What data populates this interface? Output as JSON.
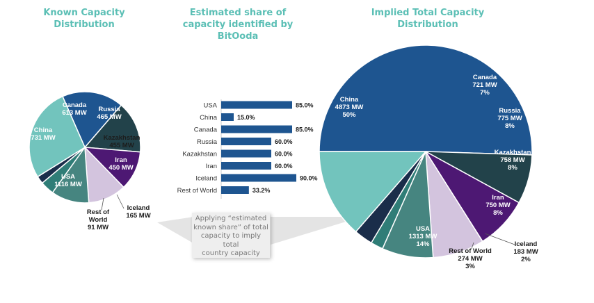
{
  "titles": {
    "left": [
      "Known Capacity",
      "Distribution"
    ],
    "middle": [
      "Estimated share of",
      "capacity identified by",
      "BitOoda"
    ],
    "right": [
      "Implied Total Capacity",
      "Distribution"
    ]
  },
  "callout_text": [
    "Applying “estimated",
    "known share” of total",
    "capacity to imply total",
    "country capacity"
  ],
  "colors": {
    "title": "#5bbfb5",
    "bar": "#1e5590",
    "China": "#1e5590",
    "Canada": "#22424a",
    "Russia": "#4d1873",
    "Kazakhstan": "#d3c4de",
    "Iran": "#468580",
    "Iceland": "#2f7d77",
    "Rest of World": "#1a2d4a",
    "USA": "#72c4bd"
  },
  "chart_data": [
    {
      "type": "pie",
      "title": "Known Capacity Distribution",
      "unit": "MW",
      "slices": [
        {
          "name": "China",
          "value": 731,
          "labels": [
            "China",
            "731 MW"
          ]
        },
        {
          "name": "Canada",
          "value": 613,
          "labels": [
            "Canada",
            "613 MW"
          ]
        },
        {
          "name": "Russia",
          "value": 465,
          "labels": [
            "Russia",
            "465 MW"
          ]
        },
        {
          "name": "Kazakhstan",
          "value": 455,
          "labels": [
            "Kazakhstan",
            "455 MW"
          ]
        },
        {
          "name": "Iran",
          "value": 450,
          "labels": [
            "Iran",
            "450 MW"
          ]
        },
        {
          "name": "Iceland",
          "value": 165,
          "labels": [
            "Iceland",
            "165 MW"
          ]
        },
        {
          "name": "Rest of World",
          "value": 91,
          "labels": [
            "Rest of",
            "World",
            "91 MW"
          ]
        },
        {
          "name": "USA",
          "value": 1116,
          "labels": [
            "USA",
            "1116 MW"
          ]
        }
      ]
    },
    {
      "type": "bar",
      "orientation": "horizontal",
      "title": "Estimated share of capacity identified by BitOoda",
      "categories": [
        "USA",
        "China",
        "Canada",
        "Russia",
        "Kazakhstan",
        "Iran",
        "Iceland",
        "Rest of World"
      ],
      "values": [
        85.0,
        15.0,
        85.0,
        60.0,
        60.0,
        60.0,
        90.0,
        33.2
      ],
      "value_labels": [
        "85.0%",
        "15.0%",
        "85.0%",
        "60.0%",
        "60.0%",
        "60.0%",
        "90.0%",
        "33.2%"
      ],
      "xlim": [
        0,
        90
      ]
    },
    {
      "type": "pie",
      "title": "Implied Total Capacity Distribution",
      "unit": "MW",
      "slices": [
        {
          "name": "China",
          "value": 4873,
          "labels": [
            "China",
            "4873 MW",
            "50%"
          ]
        },
        {
          "name": "Canada",
          "value": 721,
          "labels": [
            "Canada",
            "721 MW",
            "7%"
          ]
        },
        {
          "name": "Russia",
          "value": 775,
          "labels": [
            "Russia",
            "775 MW",
            "8%"
          ]
        },
        {
          "name": "Kazakhstan",
          "value": 758,
          "labels": [
            "Kazakhstan",
            "758 MW",
            "8%"
          ]
        },
        {
          "name": "Iran",
          "value": 750,
          "labels": [
            "Iran",
            "750 MW",
            "8%"
          ]
        },
        {
          "name": "Iceland",
          "value": 183,
          "labels": [
            "Iceland",
            "183 MW",
            "2%"
          ]
        },
        {
          "name": "Rest of World",
          "value": 274,
          "labels": [
            "Rest of World",
            "274 MW",
            "3%"
          ]
        },
        {
          "name": "USA",
          "value": 1313,
          "labels": [
            "USA",
            "1313 MW",
            "14%"
          ]
        }
      ]
    }
  ]
}
